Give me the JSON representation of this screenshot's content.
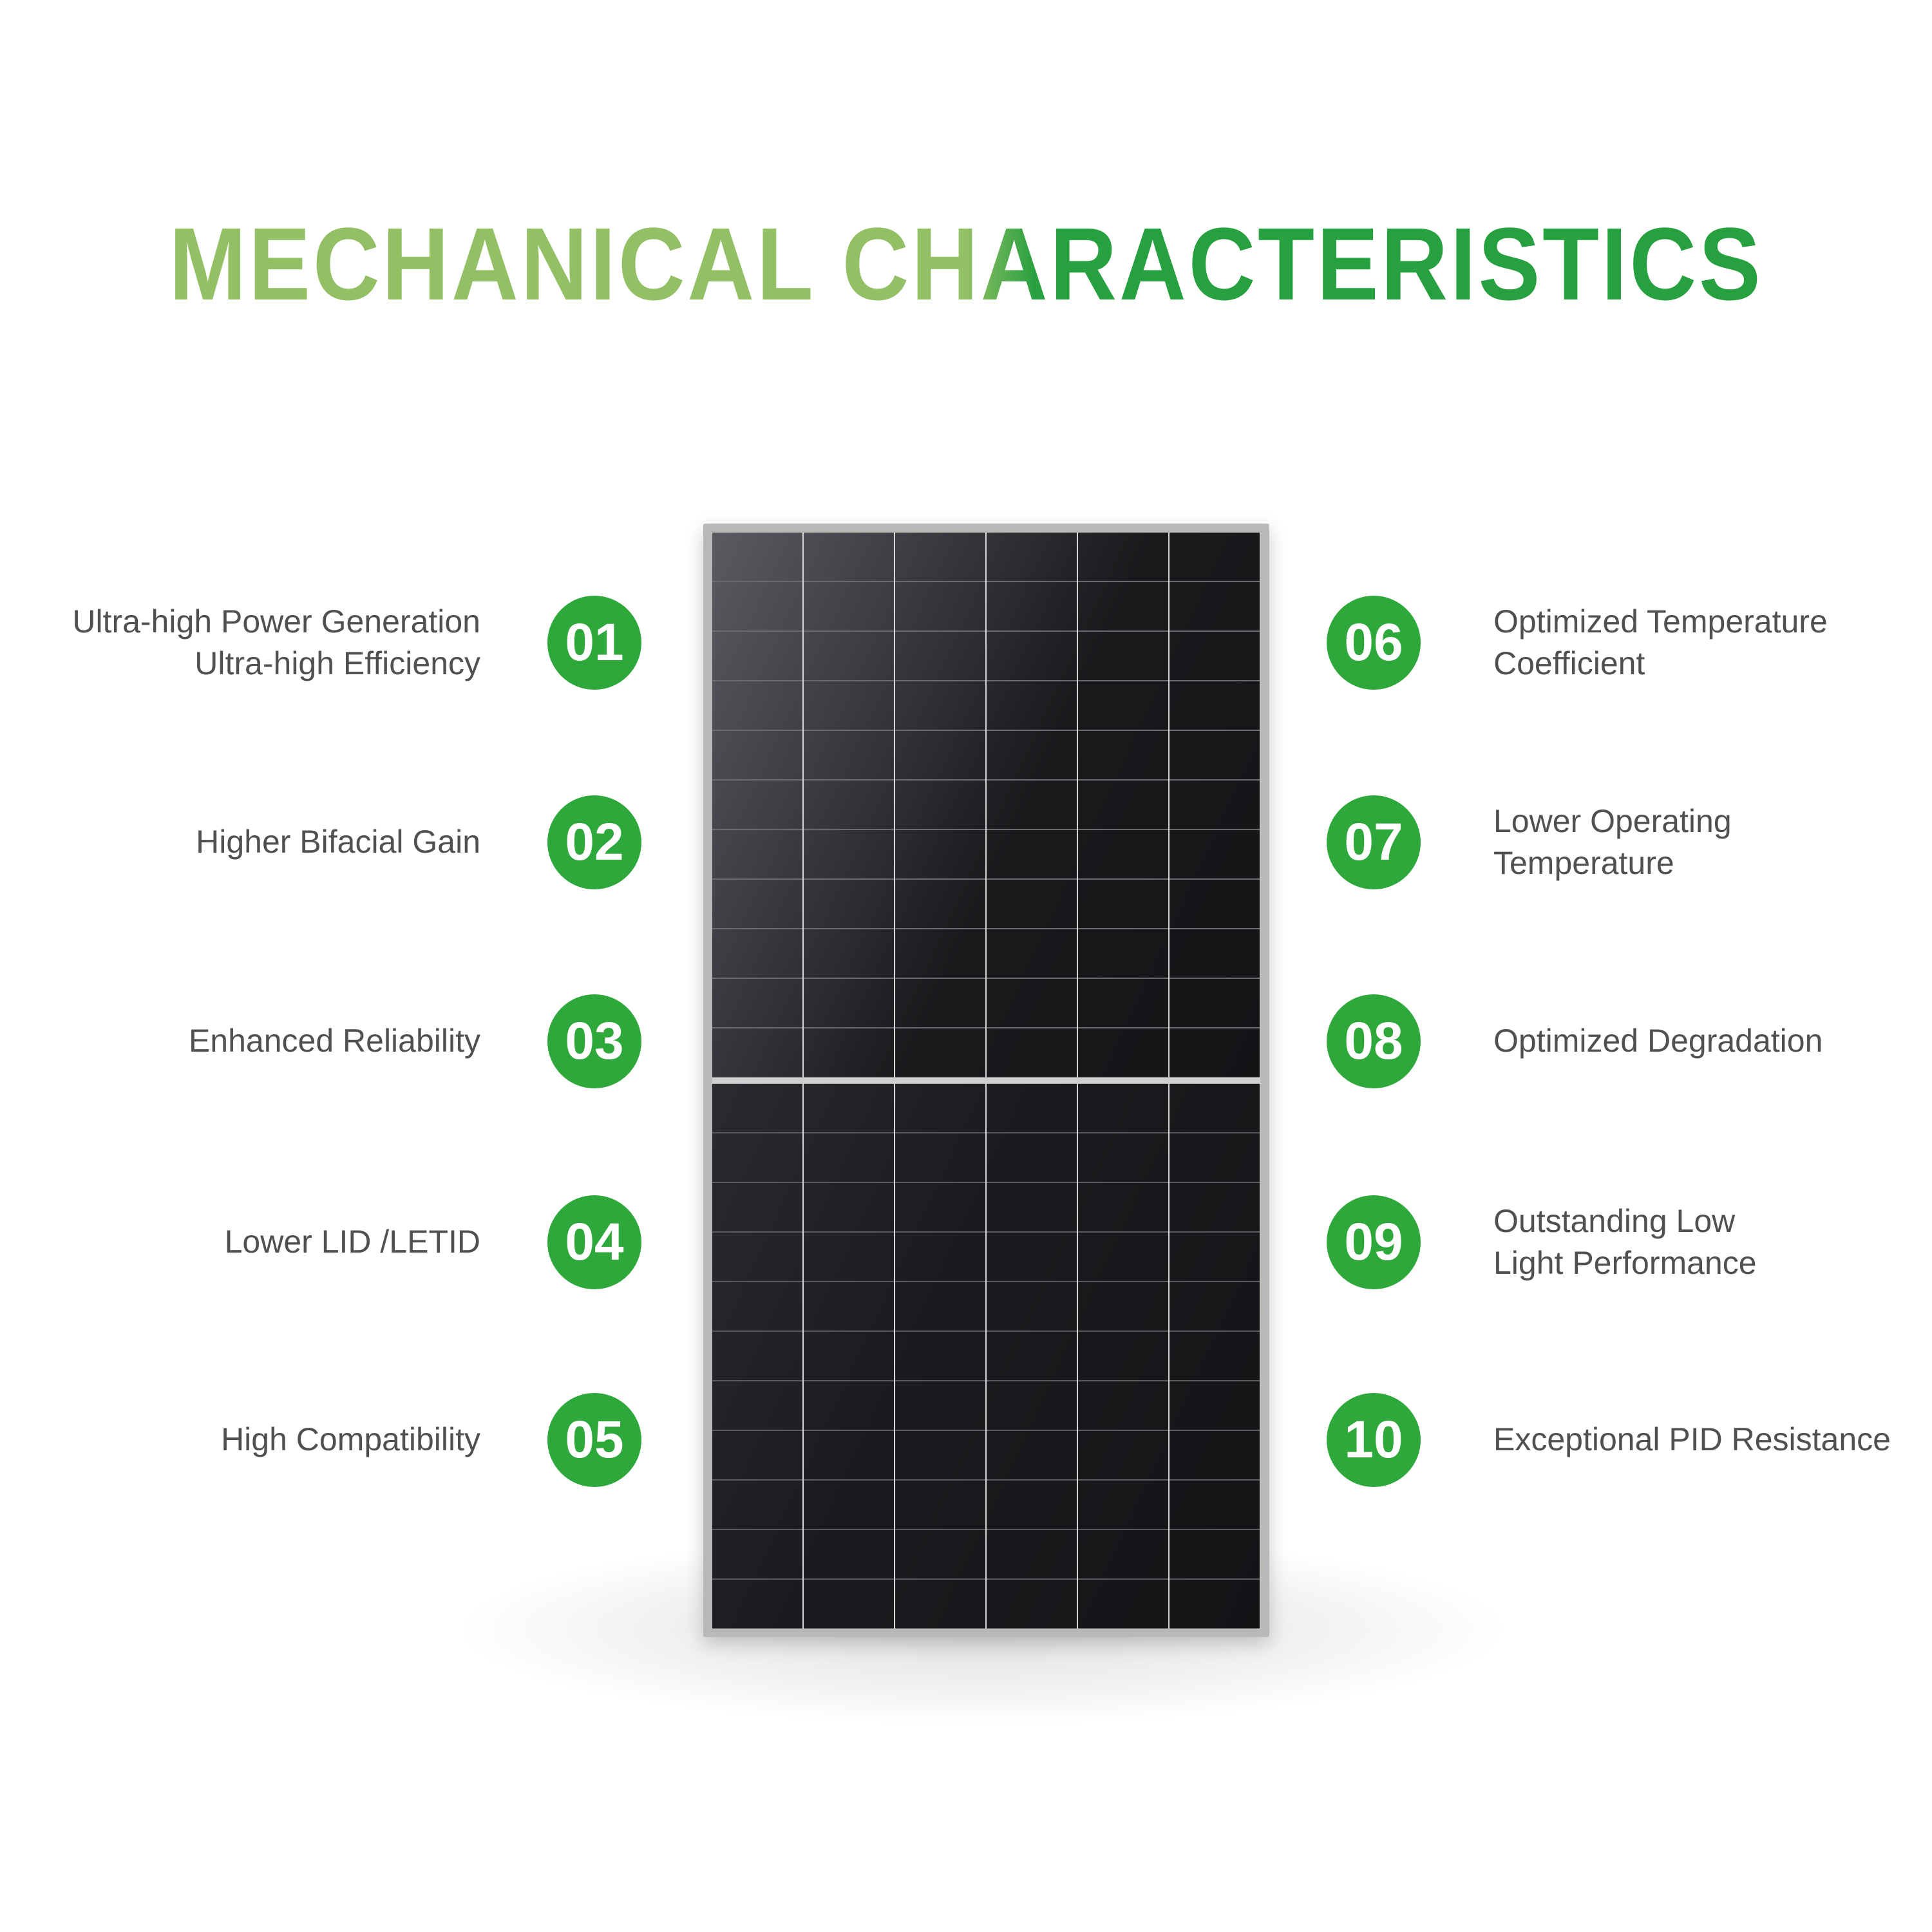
{
  "title": "MECHANICAL CHARACTERISTICS",
  "colors": {
    "title_light": "#93bf65",
    "title_dark": "#27a03f",
    "badge": "#2ea83a",
    "text": "#505050"
  },
  "features_left": [
    {
      "number": "01",
      "lines": [
        "Ultra-high Power Generation",
        "Ultra-high Efficiency"
      ]
    },
    {
      "number": "02",
      "lines": [
        "Higher Bifacial Gain"
      ]
    },
    {
      "number": "03",
      "lines": [
        "Enhanced Reliability"
      ]
    },
    {
      "number": "04",
      "lines": [
        "Lower LID /LETID"
      ]
    },
    {
      "number": "05",
      "lines": [
        "High Compatibility"
      ]
    }
  ],
  "features_right": [
    {
      "number": "06",
      "lines": [
        "Optimized Temperature",
        "Coefficient"
      ]
    },
    {
      "number": "07",
      "lines": [
        "Lower Operating",
        "Temperature"
      ]
    },
    {
      "number": "08",
      "lines": [
        "Optimized Degradation"
      ]
    },
    {
      "number": "09",
      "lines": [
        "Outstanding Low",
        "Light Performance"
      ]
    },
    {
      "number": "10",
      "lines": [
        "Exceptional PID Resistance"
      ]
    }
  ]
}
